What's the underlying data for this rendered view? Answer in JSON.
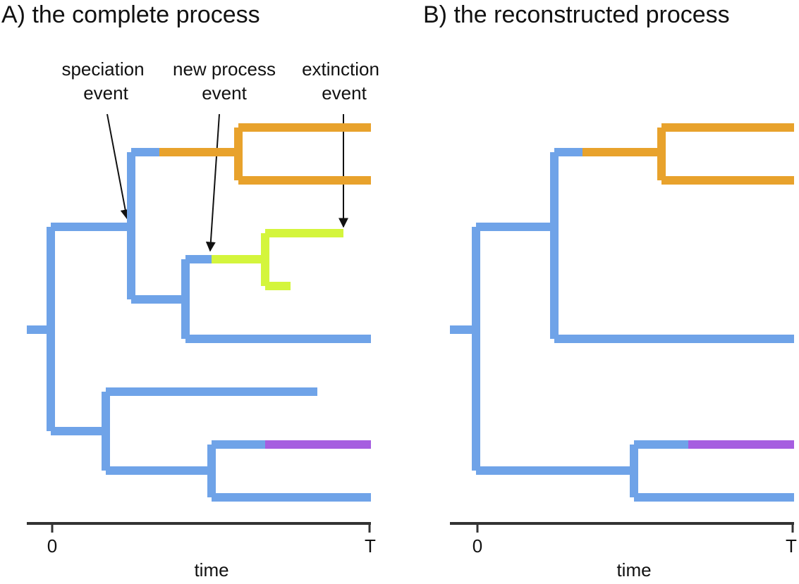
{
  "colors": {
    "blue": "#6fa3e8",
    "orange": "#e8a22c",
    "lime": "#d4f53c",
    "purple": "#a65ee0",
    "axis": "#333333",
    "arrow": "#111111"
  },
  "panels": [
    {
      "title": "A) the complete process",
      "annotations": [
        {
          "lines": [
            "speciation",
            "event"
          ]
        },
        {
          "lines": [
            "new process",
            "event"
          ]
        },
        {
          "lines": [
            "extinction",
            "event"
          ]
        }
      ],
      "axis": {
        "tick_start": "0",
        "tick_end": "T",
        "label": "time"
      }
    },
    {
      "title": "B) the reconstructed process",
      "annotations": [],
      "axis": {
        "tick_start": "0",
        "tick_end": "T",
        "label": "time"
      }
    }
  ]
}
